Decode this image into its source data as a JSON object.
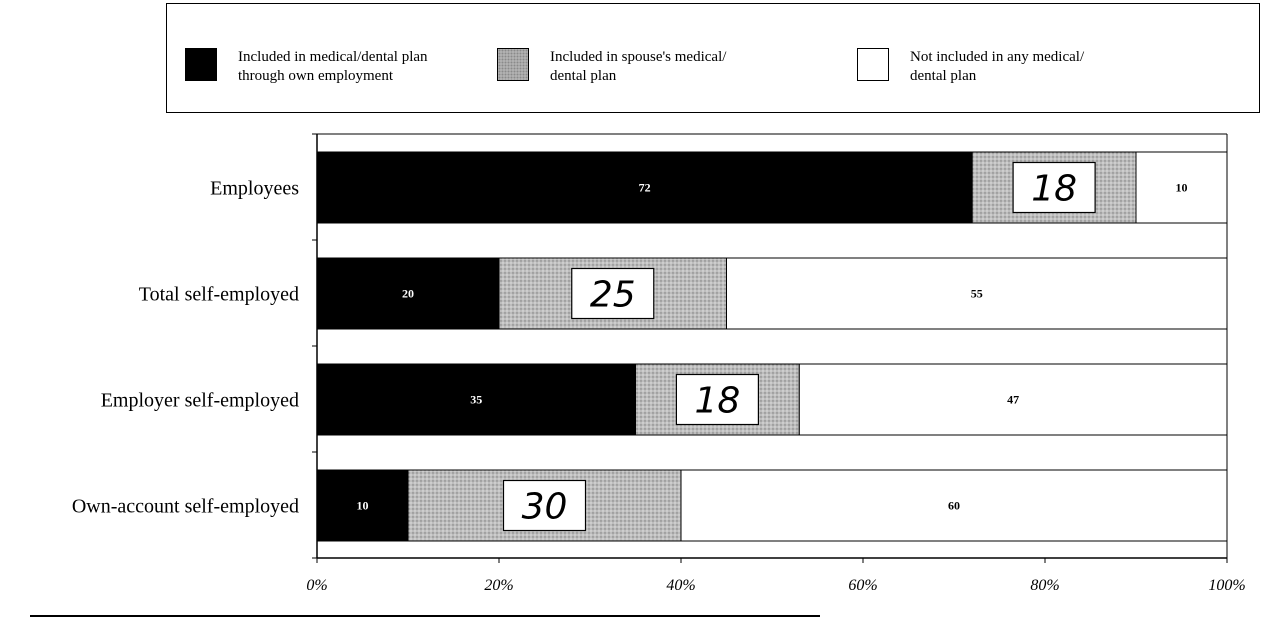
{
  "legend": {
    "items": [
      {
        "label": "Included in medical/dental plan\nthrough own employment",
        "color": "#000000"
      },
      {
        "label": "Included in spouse's medical/\ndental plan",
        "color": "#b8b8b8"
      },
      {
        "label": "Not included in any medical/\ndental plan",
        "color": "#ffffff"
      }
    ]
  },
  "chart_data": {
    "type": "bar",
    "orientation": "horizontal",
    "stacked": true,
    "percent_stacked": true,
    "categories": [
      "Employees",
      "Total self-employed",
      "Employer self-employed",
      "Own-account self-employed"
    ],
    "series": [
      {
        "name": "Included in medical/dental plan through own employment",
        "values": [
          72,
          20,
          35,
          10
        ],
        "labels": [
          "72",
          "20",
          "35",
          "10"
        ]
      },
      {
        "name": "Included in spouse's medical/ dental plan",
        "values": [
          18,
          25,
          18,
          30
        ],
        "labels": [
          "18",
          "25",
          "18",
          "30"
        ]
      },
      {
        "name": "Not included in any medical/ dental plan",
        "values": [
          10,
          55,
          47,
          60
        ],
        "labels": [
          "10",
          "55",
          "47",
          "60"
        ]
      }
    ],
    "xlim": [
      0,
      100
    ],
    "x_ticks": [
      "0%",
      "20%",
      "40%",
      "60%",
      "80%",
      "100%"
    ],
    "legend_position": "top",
    "grid": false
  }
}
